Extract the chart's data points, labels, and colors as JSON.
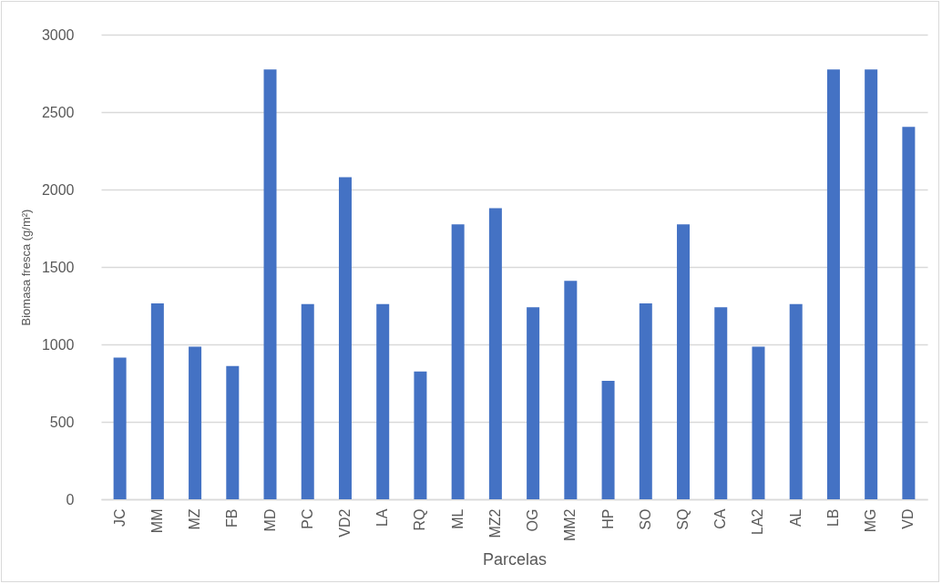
{
  "chart_data": {
    "type": "bar",
    "xlabel": "Parcelas",
    "ylabel": "Biomasa fresca (g/m²)",
    "categories": [
      "JC",
      "MM",
      "MZ",
      "FB",
      "MD",
      "PC",
      "VD2",
      "LA",
      "RQ",
      "ML",
      "MZ2",
      "OG",
      "MM2",
      "HP",
      "SO",
      "SQ",
      "CA",
      "LA2",
      "AL",
      "LB",
      "MG",
      "VD"
    ],
    "values": [
      915,
      1265,
      985,
      860,
      2775,
      1260,
      2080,
      1260,
      825,
      1775,
      1880,
      1240,
      1410,
      765,
      1265,
      1775,
      1240,
      985,
      1260,
      2775,
      2775,
      2405
    ],
    "color": "#4472c4",
    "ylim": [
      0,
      3000
    ],
    "yticks": [
      0,
      500,
      1000,
      1500,
      2000,
      2500,
      3000
    ],
    "grid": "y"
  }
}
